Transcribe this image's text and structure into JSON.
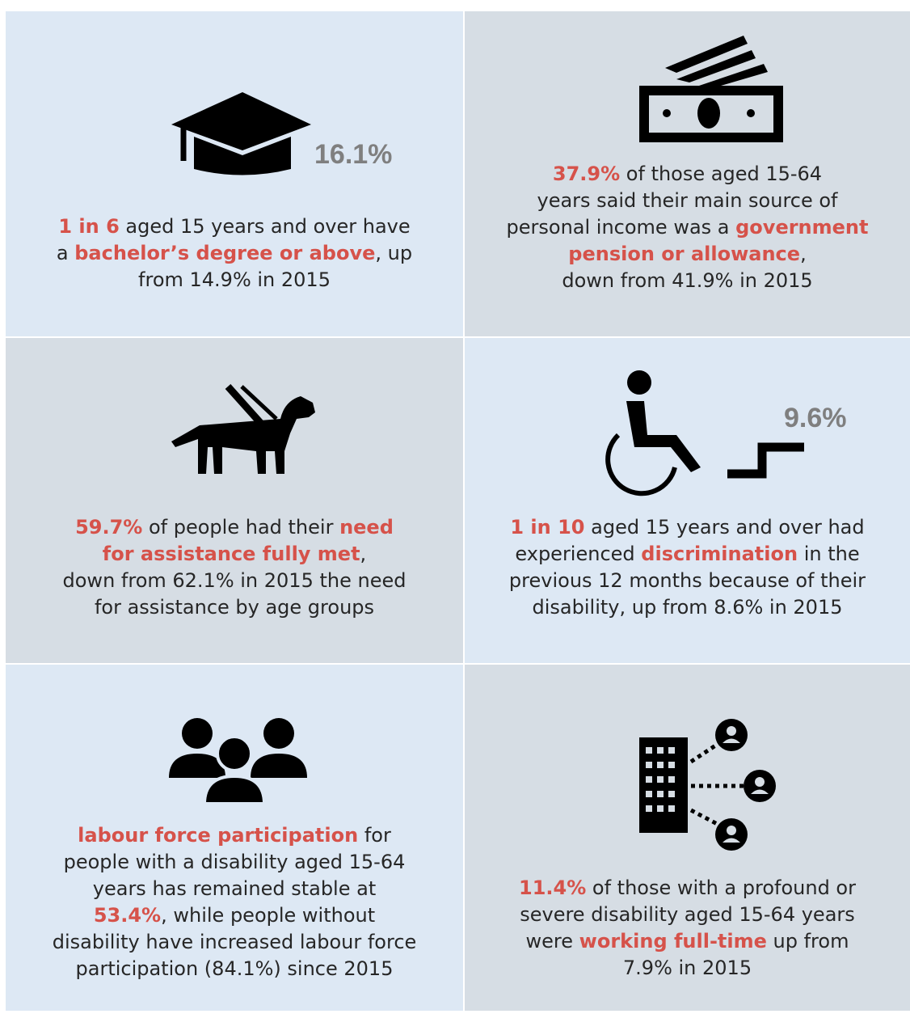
{
  "panels": [
    {
      "stat": "16.1%",
      "text": [
        "1 in 6",
        " aged 15 years and over have",
        "a ",
        "bachelor’s degree or above",
        ", up",
        "from 14.9% in 2015"
      ]
    },
    {
      "text": [
        "37.9%",
        " of those aged 15-64",
        "years said their main source of",
        "personal income was a ",
        "government",
        "pension or allowance",
        ",",
        "down from 41.9% in 2015"
      ]
    },
    {
      "text": [
        "59.7%",
        " of people had their ",
        "need",
        "for assistance fully met",
        ",",
        "down from 62.1% in 2015 the need",
        "for assistance by age groups"
      ]
    },
    {
      "stat": "9.6%",
      "text": [
        "1 in 10",
        " aged 15 years and over had",
        "experienced ",
        "discrimination",
        " in the",
        "previous 12 months because of their",
        "disability, up from 8.6% in 2015"
      ]
    },
    {
      "text": [
        "labour force participation",
        " for",
        "people with a disability aged 15-64",
        "years has remained stable at",
        "53.4%",
        ", while people without",
        "disability have increased labour force",
        "participation (84.1%) since 2015"
      ]
    },
    {
      "text": [
        "11.4%",
        " of those with a profound or",
        "severe disability aged 15-64 years",
        "were ",
        "working full-time",
        " up from",
        "7.9% in 2015"
      ]
    }
  ]
}
